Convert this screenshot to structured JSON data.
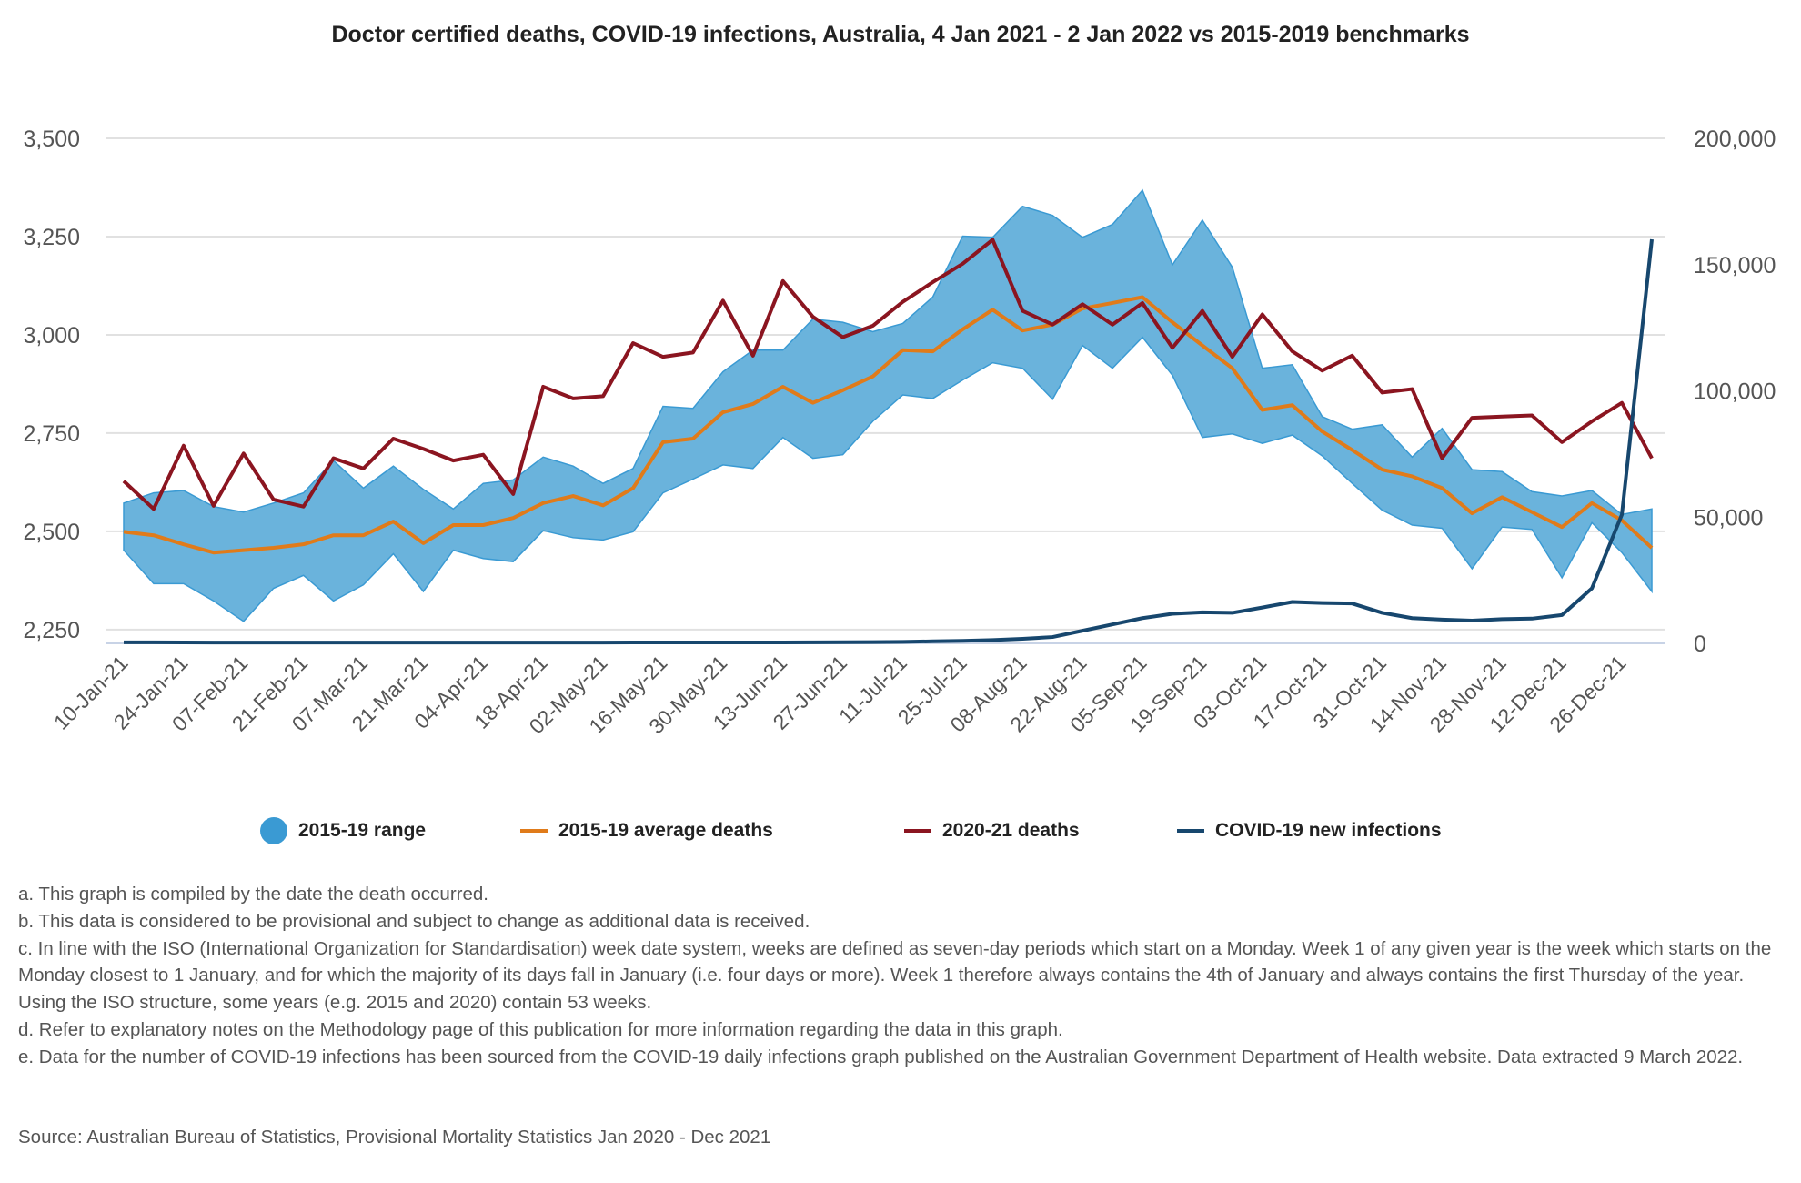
{
  "chart_data": {
    "type": "line",
    "title": "Doctor certified deaths, COVID-19 infections, Australia, 4 Jan 2021 - 2 Jan 2022 vs 2015-2019 benchmarks",
    "xlabel": "",
    "ylabel": "",
    "ylim": [
      2215,
      3500
    ],
    "y2lim": [
      0,
      200000
    ],
    "grid": true,
    "legend_position": "bottom",
    "y_ticks": [
      "2,250",
      "2,500",
      "2,750",
      "3,000",
      "3,250",
      "3,500"
    ],
    "y_tick_values": [
      2250,
      2500,
      2750,
      3000,
      3250,
      3500
    ],
    "y2_ticks": [
      "0",
      "50,000",
      "100,000",
      "150,000",
      "200,000"
    ],
    "y2_tick_values": [
      0,
      50000,
      100000,
      150000,
      200000
    ],
    "x_tick_labels": [
      "10-Jan-21",
      "24-Jan-21",
      "07-Feb-21",
      "21-Feb-21",
      "07-Mar-21",
      "21-Mar-21",
      "04-Apr-21",
      "18-Apr-21",
      "02-May-21",
      "16-May-21",
      "30-May-21",
      "13-Jun-21",
      "27-Jun-21",
      "11-Jul-21",
      "25-Jul-21",
      "08-Aug-21",
      "22-Aug-21",
      "05-Sep-21",
      "19-Sep-21",
      "03-Oct-21",
      "17-Oct-21",
      "31-Oct-21",
      "14-Nov-21",
      "28-Nov-21",
      "12-Dec-21",
      "26-Dec-21"
    ],
    "n_weeks": 52,
    "series": [
      {
        "name": "2015-19 range",
        "type": "band",
        "color": "#3a9ad3",
        "fill": "#6ab3dc",
        "lower": [
          2452,
          2367,
          2367,
          2323,
          2271,
          2355,
          2388,
          2323,
          2364,
          2443,
          2347,
          2452,
          2431,
          2423,
          2502,
          2484,
          2478,
          2499,
          2598,
          2633,
          2669,
          2660,
          2739,
          2686,
          2695,
          2780,
          2847,
          2838,
          2885,
          2929,
          2915,
          2836,
          2973,
          2915,
          2994,
          2897,
          2739,
          2748,
          2724,
          2745,
          2692,
          2622,
          2554,
          2516,
          2508,
          2405,
          2511,
          2505,
          2382,
          2522,
          2446,
          2347
        ],
        "upper": [
          2572,
          2598,
          2604,
          2563,
          2549,
          2572,
          2598,
          2680,
          2610,
          2666,
          2607,
          2557,
          2622,
          2631,
          2689,
          2666,
          2622,
          2660,
          2818,
          2813,
          2906,
          2961,
          2961,
          3040,
          3032,
          3008,
          3029,
          3096,
          3251,
          3248,
          3327,
          3304,
          3248,
          3281,
          3368,
          3178,
          3292,
          3172,
          2915,
          2924,
          2792,
          2760,
          2771,
          2689,
          2762,
          2657,
          2652,
          2601,
          2590,
          2604,
          2543,
          2557
        ]
      },
      {
        "name": "2015-19 average deaths",
        "type": "line",
        "color": "#e07b1a",
        "axis": "left",
        "values": [
          2499,
          2490,
          2467,
          2446,
          2452,
          2458,
          2467,
          2490,
          2490,
          2525,
          2470,
          2516,
          2516,
          2534,
          2572,
          2590,
          2566,
          2610,
          2727,
          2736,
          2803,
          2824,
          2868,
          2827,
          2859,
          2894,
          2961,
          2958,
          3014,
          3064,
          3011,
          3026,
          3067,
          3081,
          3096,
          3032,
          2973,
          2915,
          2809,
          2821,
          2754,
          2707,
          2657,
          2640,
          2610,
          2546,
          2587,
          2549,
          2511,
          2572,
          2528,
          2458
        ]
      },
      {
        "name": "2020-21 deaths",
        "type": "line",
        "color": "#8b1520",
        "axis": "left",
        "values": [
          2628,
          2557,
          2718,
          2565,
          2698,
          2581,
          2563,
          2686,
          2660,
          2736,
          2710,
          2680,
          2695,
          2595,
          2868,
          2838,
          2844,
          2979,
          2944,
          2955,
          3087,
          2947,
          3137,
          3046,
          2994,
          3023,
          3084,
          3134,
          3181,
          3242,
          3061,
          3026,
          3078,
          3026,
          3081,
          2967,
          3061,
          2944,
          3052,
          2958,
          2909,
          2947,
          2853,
          2862,
          2686,
          2789,
          2792,
          2795,
          2727,
          2780,
          2827,
          2686
        ]
      },
      {
        "name": "COVID-19 new infections",
        "type": "line",
        "color": "#17476e",
        "axis": "right",
        "values": [
          400,
          400,
          350,
          300,
          300,
          300,
          300,
          300,
          300,
          300,
          300,
          300,
          300,
          300,
          300,
          300,
          300,
          350,
          350,
          350,
          350,
          350,
          350,
          400,
          450,
          500,
          600,
          800,
          1000,
          1300,
          1800,
          2500,
          5000,
          7500,
          10000,
          11700,
          12300,
          12100,
          14200,
          16400,
          16000,
          15800,
          12100,
          10000,
          9400,
          9000,
          9600,
          9800,
          11200,
          21800,
          51000,
          160000
        ]
      }
    ]
  },
  "legend": [
    {
      "label": "2015-19 range"
    },
    {
      "label": "2015-19 average deaths"
    },
    {
      "label": "2020-21 deaths"
    },
    {
      "label": "COVID-19 new infections"
    }
  ],
  "notes": [
    "a. This graph is compiled by the date the death occurred.",
    "b. This data is considered to be provisional and subject to change as additional data is received.",
    "c. In line with the ISO (International Organization for Standardisation) week date system, weeks are defined as seven-day periods which start on a Monday. Week 1 of any given year is the week which starts on the Monday closest to 1 January, and for which the majority of its days fall in January (i.e. four days or more). Week 1 therefore always contains the 4th of January and always contains the first Thursday of the year. Using the ISO structure, some years (e.g. 2015 and 2020) contain 53 weeks.",
    "d. Refer to explanatory notes on the Methodology page of this publication for more information regarding the data in this graph.",
    "e. Data for the number of COVID-19 infections has been sourced from the COVID-19 daily infections graph published on the Australian Government Department of Health website. Data extracted 9 March 2022."
  ],
  "source": "Source: Australian Bureau of Statistics, Provisional Mortality Statistics Jan 2020 - Dec 2021"
}
